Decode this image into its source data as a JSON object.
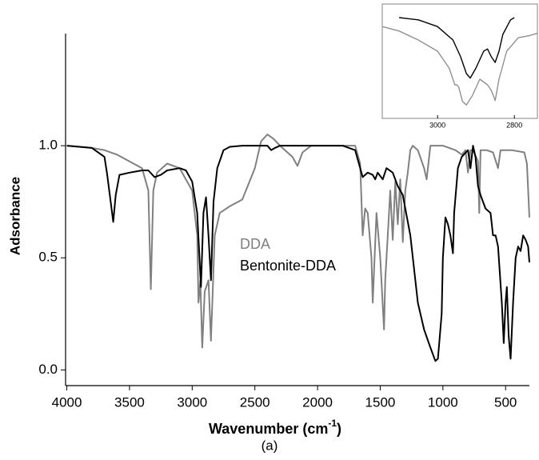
{
  "chart_data": {
    "type": "line",
    "y_label": "Adsorbance",
    "x_label": [
      "Wavenumber (cm",
      "-1",
      ")"
    ],
    "caption": "(a)",
    "xlim": [
      4010,
      310
    ],
    "ylim": [
      -0.07,
      1.5
    ],
    "xticks": [
      4000,
      3500,
      3000,
      2500,
      2000,
      1500,
      1000,
      500
    ],
    "yticks": [
      {
        "value": 0,
        "label": "0.0"
      },
      0.5,
      {
        "value": 1,
        "label": "1.0"
      }
    ],
    "series": [
      {
        "name": "DDA",
        "color": "#808080",
        "x": [
          4000,
          3800,
          3700,
          3600,
          3500,
          3400,
          3350,
          3330,
          3310,
          3280,
          3200,
          3100,
          3000,
          2960,
          2950,
          2935,
          2920,
          2900,
          2870,
          2850,
          2820,
          2780,
          2700,
          2600,
          2500,
          2450,
          2400,
          2350,
          2300,
          2200,
          2160,
          2120,
          2050,
          1800,
          1700,
          1660,
          1640,
          1620,
          1600,
          1570,
          1560,
          1545,
          1530,
          1500,
          1470,
          1460,
          1440,
          1420,
          1400,
          1380,
          1360,
          1340,
          1320,
          1300,
          1280,
          1260,
          1240,
          1200,
          1150,
          1130,
          1100,
          1000,
          900,
          850,
          820,
          800,
          780,
          760,
          720,
          710,
          700,
          650,
          600,
          560,
          540,
          450,
          350,
          330,
          310
        ],
        "values": [
          1.0,
          0.99,
          0.98,
          0.96,
          0.93,
          0.9,
          0.8,
          0.36,
          0.8,
          0.88,
          0.92,
          0.9,
          0.8,
          0.6,
          0.3,
          0.4,
          0.1,
          0.35,
          0.4,
          0.13,
          0.6,
          0.7,
          0.73,
          0.76,
          0.9,
          1.02,
          1.05,
          1.03,
          1.0,
          0.95,
          0.91,
          0.97,
          1.0,
          1.0,
          1.0,
          0.92,
          0.6,
          0.72,
          0.7,
          0.5,
          0.3,
          0.5,
          0.7,
          0.5,
          0.18,
          0.4,
          0.6,
          0.8,
          0.58,
          0.84,
          0.65,
          0.85,
          0.57,
          0.8,
          0.88,
          0.98,
          1.0,
          0.98,
          0.9,
          0.85,
          1.0,
          1.0,
          0.98,
          0.96,
          0.98,
          0.88,
          0.98,
          0.98,
          0.93,
          0.7,
          0.98,
          0.98,
          0.97,
          0.9,
          0.98,
          0.98,
          0.97,
          0.92,
          0.68
        ]
      },
      {
        "name": "Bentonite-DDA",
        "color": "#000000",
        "x": [
          4000,
          3800,
          3700,
          3680,
          3650,
          3630,
          3610,
          3580,
          3500,
          3400,
          3350,
          3300,
          3250,
          3200,
          3100,
          3050,
          3000,
          2960,
          2930,
          2910,
          2890,
          2870,
          2850,
          2830,
          2800,
          2750,
          2700,
          2600,
          2400,
          2370,
          2340,
          2300,
          1800,
          1700,
          1660,
          1640,
          1600,
          1560,
          1540,
          1520,
          1480,
          1450,
          1400,
          1360,
          1320,
          1300,
          1260,
          1200,
          1150,
          1100,
          1060,
          1040,
          1010,
          1000,
          980,
          960,
          940,
          920,
          910,
          880,
          850,
          800,
          780,
          760,
          740,
          720,
          700,
          660,
          620,
          600,
          580,
          560,
          530,
          515,
          500,
          490,
          475,
          460,
          440,
          420,
          400,
          380,
          360,
          340,
          320,
          310
        ],
        "values": [
          1.0,
          0.99,
          0.95,
          0.88,
          0.75,
          0.66,
          0.78,
          0.87,
          0.88,
          0.89,
          0.89,
          0.86,
          0.87,
          0.89,
          0.9,
          0.89,
          0.84,
          0.7,
          0.37,
          0.7,
          0.77,
          0.6,
          0.4,
          0.75,
          0.9,
          0.98,
          0.995,
          1.0,
          1.0,
          0.98,
          0.99,
          1.0,
          1.0,
          0.98,
          0.9,
          0.86,
          0.88,
          0.87,
          0.85,
          0.88,
          0.85,
          0.9,
          0.88,
          0.82,
          0.78,
          0.72,
          0.6,
          0.3,
          0.18,
          0.1,
          0.04,
          0.05,
          0.25,
          0.5,
          0.68,
          0.65,
          0.6,
          0.52,
          0.7,
          0.9,
          0.95,
          0.98,
          0.9,
          1.0,
          0.95,
          0.82,
          0.78,
          0.72,
          0.7,
          0.6,
          0.6,
          0.55,
          0.3,
          0.12,
          0.3,
          0.37,
          0.15,
          0.05,
          0.3,
          0.5,
          0.55,
          0.53,
          0.6,
          0.58,
          0.55,
          0.48
        ]
      }
    ],
    "inset": {
      "xlim": [
        3144,
        2740
      ],
      "ylim": [
        0,
        1
      ],
      "xticks": [
        3000,
        2800
      ],
      "series": [
        {
          "color": "#000000",
          "x": [
            3100,
            3050,
            3000,
            2960,
            2940,
            2925,
            2915,
            2900,
            2880,
            2870,
            2860,
            2850,
            2840,
            2830,
            2810,
            2800
          ],
          "values": [
            0.9,
            0.88,
            0.82,
            0.7,
            0.55,
            0.4,
            0.36,
            0.45,
            0.6,
            0.62,
            0.55,
            0.5,
            0.6,
            0.75,
            0.88,
            0.9
          ]
        },
        {
          "color": "#909090",
          "x": [
            3144,
            3100,
            3050,
            3000,
            2970,
            2955,
            2950,
            2945,
            2935,
            2925,
            2910,
            2890,
            2870,
            2860,
            2850,
            2840,
            2820,
            2790,
            2760,
            2740
          ],
          "values": [
            0.82,
            0.78,
            0.7,
            0.6,
            0.45,
            0.3,
            0.3,
            0.28,
            0.15,
            0.12,
            0.2,
            0.35,
            0.3,
            0.25,
            0.16,
            0.35,
            0.6,
            0.72,
            0.74,
            0.76
          ]
        }
      ]
    }
  }
}
